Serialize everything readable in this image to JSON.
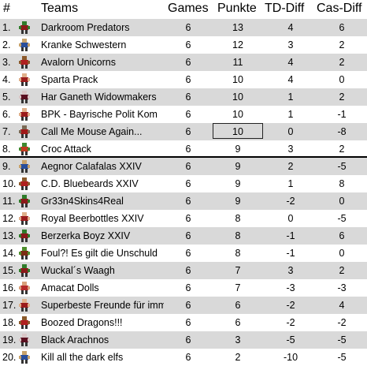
{
  "headers": {
    "rank": "#",
    "team": "Teams",
    "games": "Games",
    "points": "Punkte",
    "td": "TD-Diff",
    "cas": "Cas-Diff"
  },
  "rows": [
    {
      "rank": "1.",
      "team": "Darkroom Predators",
      "games": "6",
      "points": "13",
      "td": "4",
      "cas": "6",
      "icon": "orc-player-icon"
    },
    {
      "rank": "2.",
      "team": "Kranke Schwestern",
      "games": "6",
      "points": "12",
      "td": "3",
      "cas": "2",
      "icon": "elf-player-icon"
    },
    {
      "rank": "3.",
      "team": "Avalorn Unicorns",
      "games": "6",
      "points": "11",
      "td": "4",
      "cas": "2",
      "icon": "dwarf-player-icon"
    },
    {
      "rank": "4.",
      "team": "Sparta Prack",
      "games": "6",
      "points": "10",
      "td": "4",
      "cas": "0",
      "icon": "human-player-icon"
    },
    {
      "rank": "5.",
      "team": "Har Ganeth Widowmakers",
      "games": "6",
      "points": "10",
      "td": "1",
      "cas": "2",
      "icon": "dark-elf-player-icon"
    },
    {
      "rank": "6.",
      "team": "BPK - Bayrische Polit Kom",
      "games": "6",
      "points": "10",
      "td": "1",
      "cas": "-1",
      "icon": "human-player-icon"
    },
    {
      "rank": "7.",
      "team": "Call Me Mouse Again...",
      "games": "6",
      "points": "10",
      "td": "0",
      "cas": "-8",
      "icon": "skaven-player-icon"
    },
    {
      "rank": "8.",
      "team": "Croc Attack",
      "games": "6",
      "points": "9",
      "td": "3",
      "cas": "2",
      "icon": "lizardman-player-icon"
    },
    {
      "rank": "9.",
      "team": "Aegnor Calafalas XXIV",
      "games": "6",
      "points": "9",
      "td": "2",
      "cas": "-5",
      "icon": "elf-player-icon"
    },
    {
      "rank": "10.",
      "team": "C.D. Bluebeards XXIV",
      "games": "6",
      "points": "9",
      "td": "1",
      "cas": "8",
      "icon": "dwarf-player-icon"
    },
    {
      "rank": "11.",
      "team": "Gr33n4Skins4Real",
      "games": "6",
      "points": "9",
      "td": "-2",
      "cas": "0",
      "icon": "orc-player-icon"
    },
    {
      "rank": "12.",
      "team": "Royal Beerbottles XXIV",
      "games": "6",
      "points": "8",
      "td": "0",
      "cas": "-5",
      "icon": "human-player-icon"
    },
    {
      "rank": "13.",
      "team": "Berzerka Boyz XXIV",
      "games": "6",
      "points": "8",
      "td": "-1",
      "cas": "6",
      "icon": "orc-player-icon"
    },
    {
      "rank": "14.",
      "team": "Foul?! Es gilt die Unschuld",
      "games": "6",
      "points": "8",
      "td": "-1",
      "cas": "0",
      "icon": "goblin-player-icon"
    },
    {
      "rank": "15.",
      "team": "Wuckal´s Waagh",
      "games": "6",
      "points": "7",
      "td": "3",
      "cas": "2",
      "icon": "orc-player-icon"
    },
    {
      "rank": "16.",
      "team": "Amacat Dolls",
      "games": "6",
      "points": "7",
      "td": "-3",
      "cas": "-3",
      "icon": "amazon-player-icon"
    },
    {
      "rank": "17.",
      "team": "Superbeste Freunde für immer",
      "games": "6",
      "points": "6",
      "td": "-2",
      "cas": "4",
      "icon": "human-player-icon"
    },
    {
      "rank": "18.",
      "team": "Boozed Dragons!!!",
      "games": "6",
      "points": "6",
      "td": "-2",
      "cas": "-2",
      "icon": "dwarf-player-icon"
    },
    {
      "rank": "19.",
      "team": "Black Arachnos",
      "games": "6",
      "points": "3",
      "td": "-5",
      "cas": "-5",
      "icon": "dark-elf-player-icon"
    },
    {
      "rank": "20.",
      "team": "Kill all the dark elfs",
      "games": "6",
      "points": "2",
      "td": "-10",
      "cas": "-5",
      "icon": "elf-player-icon"
    }
  ],
  "highlight_row": 6,
  "separator_after_row": 7,
  "colors": {
    "alt_row": "#d9d9d9",
    "base_row": "#ffffff",
    "separator": "#000000"
  }
}
